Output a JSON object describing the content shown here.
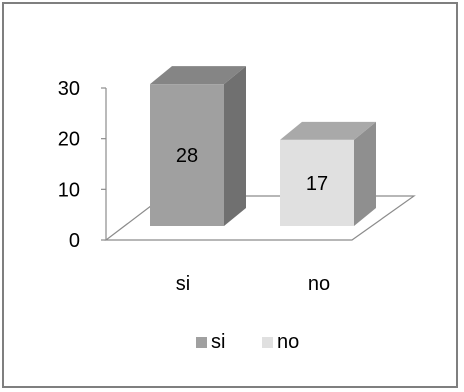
{
  "chart_data": {
    "type": "bar",
    "categories": [
      "si",
      "no"
    ],
    "values": [
      28,
      17
    ],
    "ylim": [
      0,
      30
    ],
    "yticks": [
      0,
      10,
      20,
      30
    ],
    "grid": false,
    "legend_position": "bottom",
    "legend": [
      {
        "label": "si",
        "color": "#a0a0a0"
      },
      {
        "label": "no",
        "color": "#e0e0e0"
      }
    ],
    "bar_colors": {
      "si": {
        "front": "#a0a0a0",
        "top": "#858585",
        "side": "#707070"
      },
      "no": {
        "front": "#e0e0e0",
        "top": "#a9a9a9",
        "side": "#8f8f8f"
      }
    },
    "three_d": true
  }
}
